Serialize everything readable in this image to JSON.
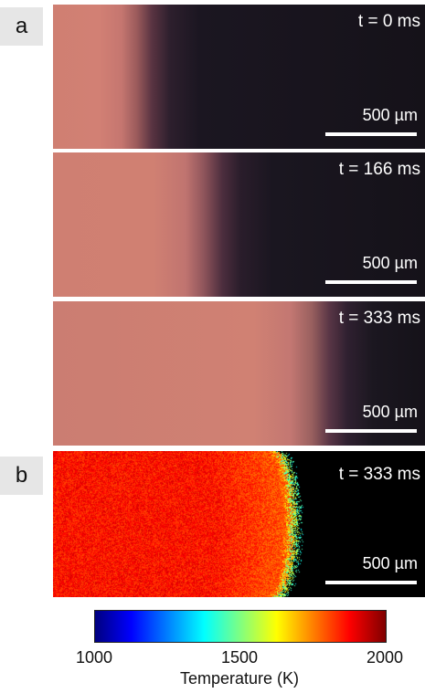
{
  "panels": {
    "a": {
      "label": "a",
      "frames": [
        {
          "time": "t = 0 ms",
          "scale": "500 µm"
        },
        {
          "time": "t = 166 ms",
          "scale": "500 µm"
        },
        {
          "time": "t = 333 ms",
          "scale": "500 µm"
        }
      ]
    },
    "b": {
      "label": "b",
      "time": "t = 333 ms",
      "scale": "500 µm"
    }
  },
  "colorbar": {
    "min_label": "1000",
    "mid_label": "1500",
    "max_label": "2000",
    "title": "Temperature (K)",
    "colormap": "jet"
  },
  "colors": {
    "hot_region": "#d08173",
    "background": "#151219"
  }
}
